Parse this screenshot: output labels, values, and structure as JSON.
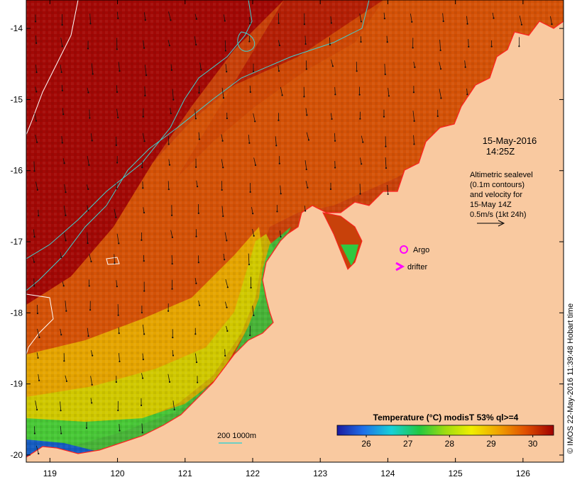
{
  "map": {
    "lat_ticks": [
      "-14",
      "-15",
      "-16",
      "-17",
      "-18",
      "-19",
      "-20"
    ],
    "lon_ticks": [
      "119",
      "120",
      "121",
      "122",
      "123",
      "124",
      "125",
      "126"
    ],
    "lon_range": [
      118.65,
      126.6
    ],
    "lat_range": [
      -13.6,
      -20.1
    ],
    "timestamp_date": "15-May-2016",
    "timestamp_time": "14:25Z",
    "altimetry_lines": [
      "Altimetric sealevel",
      "(0.1m contours)",
      "and velocity for",
      "15-May 14Z",
      "0.5m/s (1kt 24h)"
    ],
    "legend_argo": "Argo",
    "legend_drifter": "drifter",
    "depth_legend": "200  1000m",
    "colorbar_title": "Temperature (°C) modisT 53% ql>=4",
    "colorbar_ticks": [
      "26",
      "27",
      "28",
      "29",
      "30"
    ],
    "colorbar_range": [
      25.3,
      30.5
    ],
    "credit": "© IMOS 22-May-2016 11:39:48 Hobart time"
  },
  "colors": {
    "land": "#f9c9a0",
    "coast": "#ff2020",
    "contour_200m": "#40d0d0",
    "contour_1000m": "#ffffff",
    "argo": "#ff00ff",
    "arrow": "#111111"
  }
}
